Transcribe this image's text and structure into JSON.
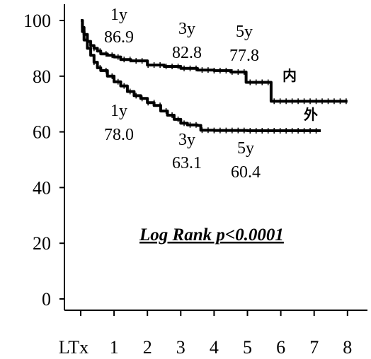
{
  "chart_data": {
    "type": "line",
    "title": "",
    "xlabel": "",
    "ylabel": "",
    "x_tick_labels": [
      "LTx",
      "1",
      "2",
      "3",
      "4",
      "5",
      "6",
      "7",
      "8"
    ],
    "y_ticks": [
      0,
      20,
      40,
      60,
      80,
      100
    ],
    "xlim": [
      0,
      8
    ],
    "ylim": [
      0,
      100
    ],
    "grid": false,
    "annotation_text": "Log Rank p<0.0001",
    "series": [
      {
        "name": "内",
        "color": "#000000",
        "x": [
          0,
          0.05,
          0.1,
          0.2,
          0.3,
          0.4,
          0.5,
          0.6,
          0.8,
          1.0,
          1.2,
          1.5,
          2.0,
          2.5,
          3.0,
          3.5,
          4.0,
          4.5,
          4.95,
          4.96,
          5.7,
          5.71,
          6.0,
          7.0,
          8.0
        ],
        "y": [
          100,
          97.5,
          95,
          92.5,
          91,
          90,
          89,
          88,
          87.5,
          86.9,
          86,
          85.5,
          84,
          83.5,
          82.8,
          82.2,
          82,
          81.5,
          81.5,
          77.8,
          77.8,
          71,
          71,
          71,
          71
        ]
      },
      {
        "name": "外",
        "color": "#000000",
        "x": [
          0,
          0.05,
          0.1,
          0.2,
          0.3,
          0.4,
          0.5,
          0.6,
          0.8,
          1.0,
          1.2,
          1.4,
          1.6,
          1.8,
          2.0,
          2.2,
          2.4,
          2.6,
          2.8,
          3.0,
          3.2,
          3.5,
          3.6,
          4.0,
          4.5,
          5.0,
          6.0,
          7.0,
          7.2
        ],
        "y": [
          100,
          96,
          93,
          90,
          87.5,
          85,
          83,
          82,
          80,
          78,
          76.5,
          74.5,
          73,
          72,
          70.5,
          69.5,
          67.5,
          66,
          64.5,
          63.1,
          62.5,
          62.3,
          60.6,
          60.5,
          60.5,
          60.4,
          60.4,
          60.4,
          60.4
        ]
      }
    ],
    "annotations": [
      {
        "series": "内",
        "x": 1,
        "year_label": "1y",
        "value_label": "86.9"
      },
      {
        "series": "内",
        "x": 3,
        "year_label": "3y",
        "value_label": "82.8"
      },
      {
        "series": "内",
        "x": 5,
        "year_label": "5y",
        "value_label": "77.8"
      },
      {
        "series": "外",
        "x": 1,
        "year_label": "1y",
        "value_label": "78.0"
      },
      {
        "series": "外",
        "x": 3,
        "year_label": "3y",
        "value_label": "63.1"
      },
      {
        "series": "外",
        "x": 5,
        "year_label": "5y",
        "value_label": "60.4"
      }
    ]
  }
}
